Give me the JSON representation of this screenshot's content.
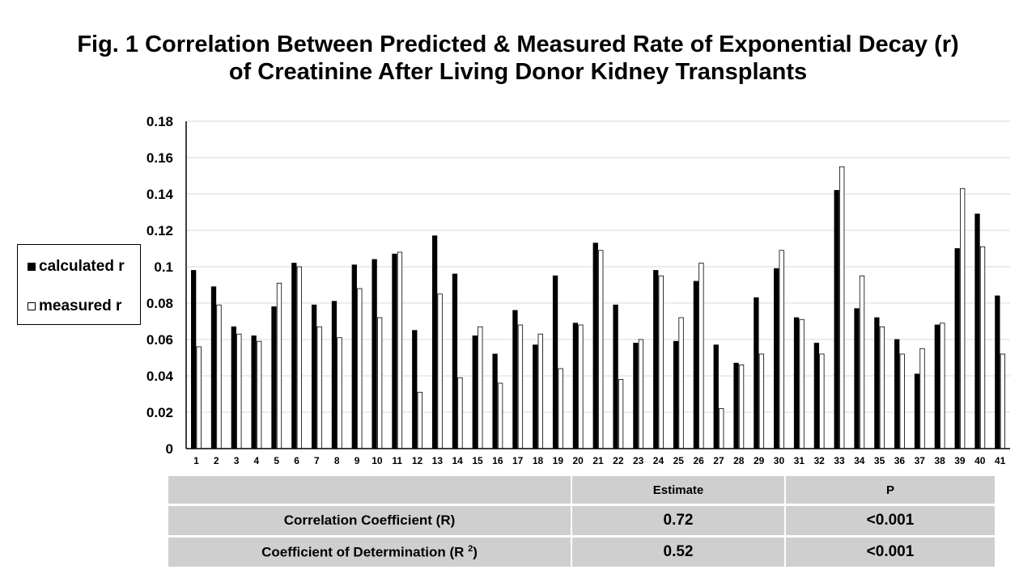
{
  "title_line1": "Fig. 1  Correlation Between Predicted & Measured Rate of Exponential Decay (r)",
  "title_line2": "of Creatinine After Living Donor Kidney Transplants",
  "legend": [
    {
      "label": "calculated r",
      "color": "#000000"
    },
    {
      "label": "measured r",
      "color": "#ffffff"
    }
  ],
  "chart_data": {
    "type": "bar",
    "title": "Fig. 1  Correlation Between Predicted & Measured Rate of Exponential Decay (r) of Creatinine After Living Donor Kidney Transplants",
    "xlabel": "",
    "ylabel": "",
    "ylim": [
      0,
      0.18
    ],
    "yticks": [
      {
        "value": 0,
        "label": "0"
      },
      {
        "value": 0.02,
        "label": "0.02"
      },
      {
        "value": 0.04,
        "label": "0.04"
      },
      {
        "value": 0.06,
        "label": "0.06"
      },
      {
        "value": 0.08,
        "label": "0.08"
      },
      {
        "value": 0.1,
        "label": "0.1"
      },
      {
        "value": 0.12,
        "label": "0.12"
      },
      {
        "value": 0.14,
        "label": "0.14"
      },
      {
        "value": 0.16,
        "label": "0.16"
      },
      {
        "value": 0.18,
        "label": "0.18"
      }
    ],
    "grid": true,
    "legend_position": "left",
    "categories": [
      "1",
      "2",
      "3",
      "4",
      "5",
      "6",
      "7",
      "8",
      "9",
      "10",
      "11",
      "12",
      "13",
      "14",
      "15",
      "16",
      "17",
      "18",
      "19",
      "20",
      "21",
      "22",
      "23",
      "24",
      "25",
      "26",
      "27",
      "28",
      "29",
      "30",
      "31",
      "32",
      "33",
      "34",
      "35",
      "36",
      "37",
      "38",
      "39",
      "40",
      "41"
    ],
    "series": [
      {
        "name": "calculated r",
        "color": "#000000",
        "values": [
          0.098,
          0.089,
          0.067,
          0.062,
          0.078,
          0.102,
          0.079,
          0.081,
          0.101,
          0.104,
          0.107,
          0.065,
          0.117,
          0.096,
          0.062,
          0.052,
          0.076,
          0.057,
          0.095,
          0.069,
          0.113,
          0.079,
          0.058,
          0.098,
          0.059,
          0.092,
          0.057,
          0.047,
          0.083,
          0.099,
          0.072,
          0.058,
          0.142,
          0.077,
          0.072,
          0.06,
          0.041,
          0.068,
          0.11,
          0.129,
          0.084
        ]
      },
      {
        "name": "measured r",
        "color": "#ffffff",
        "values": [
          0.056,
          0.079,
          0.063,
          0.059,
          0.091,
          0.1,
          0.067,
          0.061,
          0.088,
          0.072,
          0.108,
          0.031,
          0.085,
          0.039,
          0.067,
          0.036,
          0.068,
          0.063,
          0.044,
          0.068,
          0.109,
          0.038,
          0.06,
          0.095,
          0.072,
          0.102,
          0.022,
          0.046,
          0.052,
          0.109,
          0.071,
          0.052,
          0.155,
          0.095,
          0.067,
          0.052,
          0.055,
          0.069,
          0.143,
          0.111,
          0.052
        ]
      }
    ]
  },
  "stats_table": {
    "header": [
      "",
      "Estimate",
      "P"
    ],
    "rows": [
      {
        "label": "Correlation Coefficient (R)",
        "estimate": "0.72",
        "p": "<0.001"
      },
      {
        "label": "Coefficient of Determination (R ",
        "label_sup": "2",
        "label_tail": ")",
        "estimate": "0.52",
        "p": "<0.001"
      }
    ]
  }
}
